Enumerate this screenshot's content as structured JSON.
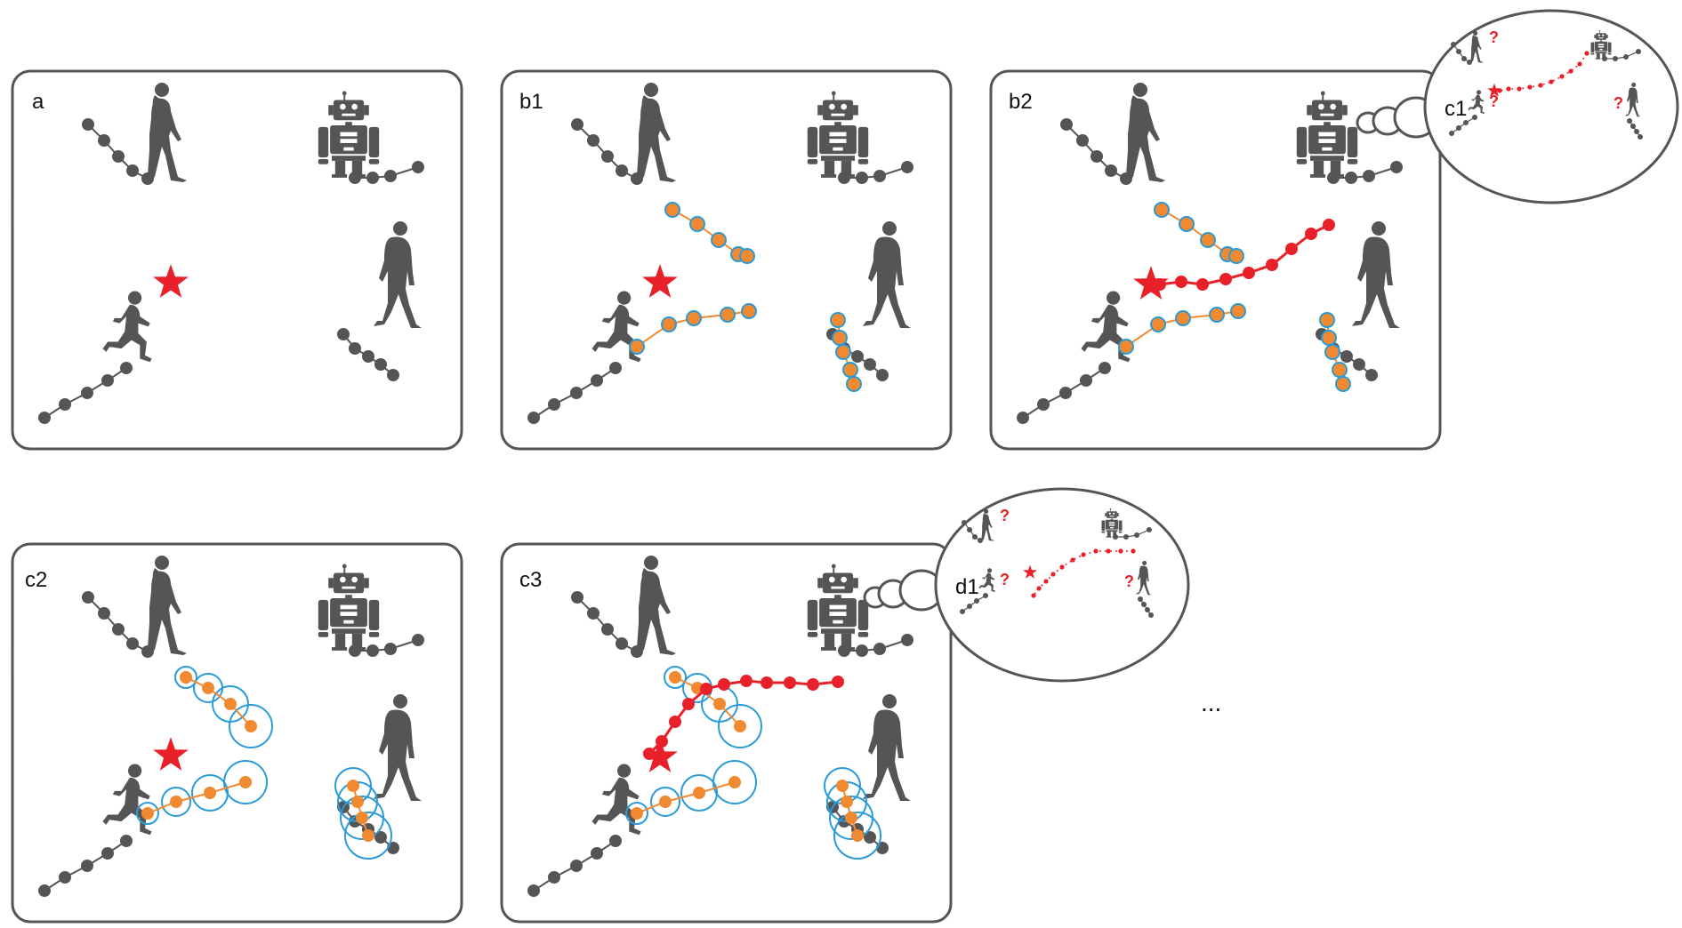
{
  "panels": [
    {
      "id": "a",
      "label": "a"
    },
    {
      "id": "b1",
      "label": "b1"
    },
    {
      "id": "b2",
      "label": "b2"
    },
    {
      "id": "c2",
      "label": "c2"
    },
    {
      "id": "c3",
      "label": "c3"
    }
  ],
  "bubbles": [
    {
      "id": "c1",
      "label": "c1",
      "question_mark": "?"
    },
    {
      "id": "d1",
      "label": "d1",
      "question_mark": "?"
    }
  ],
  "ellipsis": "...",
  "colors": {
    "frame": "#555555",
    "figure": "#555555",
    "history_dot": "#555555",
    "prediction_dot": "#F0892F",
    "prediction_ring": "#2A9BD9",
    "robot_plan": "#E8202A",
    "goal_star": "#E8202A"
  },
  "icons": [
    "woman-walking-icon",
    "robot-icon",
    "boy-running-icon",
    "man-walking-icon",
    "goal-star-icon"
  ]
}
